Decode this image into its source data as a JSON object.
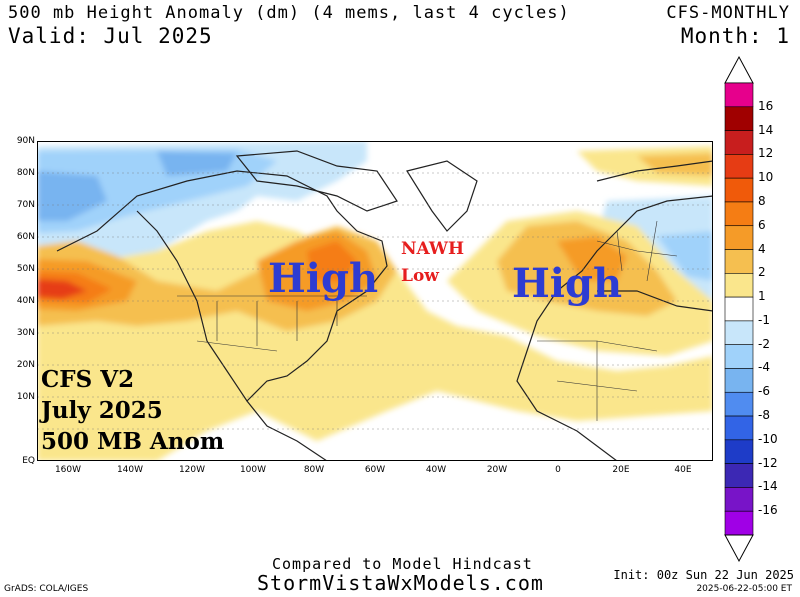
{
  "header": {
    "title": "500 mb Height Anomaly (dm) (4 mems, last 4 cycles)",
    "model": "CFS-MONTHLY",
    "valid": "Valid: Jul 2025",
    "month": "Month: 1"
  },
  "axes": {
    "lat_labels": [
      "90N",
      "80N",
      "70N",
      "60N",
      "50N",
      "40N",
      "30N",
      "20N",
      "10N",
      "EQ"
    ],
    "lon_labels": [
      "160W",
      "140W",
      "120W",
      "100W",
      "80W",
      "60W",
      "40W",
      "20W",
      "0",
      "20E",
      "40E"
    ]
  },
  "annotations": {
    "high_na": "High",
    "nawh_1": "NAWH",
    "nawh_2": "Low",
    "high_eu": "High",
    "cfs_1": "CFS V2",
    "cfs_2": "July 2025",
    "cfs_3": "500 MB Anom"
  },
  "colorbar": {
    "labels": [
      "16",
      "14",
      "12",
      "10",
      "8",
      "6",
      "4",
      "2",
      "1",
      "-1",
      "-2",
      "-4",
      "-6",
      "-8",
      "-10",
      "-12",
      "-14",
      "-16"
    ],
    "colors": [
      "#e6008c",
      "#a00000",
      "#c81e1e",
      "#e63c14",
      "#f05a0a",
      "#f57d14",
      "#f59b28",
      "#f5bf50",
      "#fae68c",
      "#ffffff",
      "#c8e6fa",
      "#a0d2fa",
      "#78b4f0",
      "#508cf0",
      "#3264e6",
      "#1e3cc8",
      "#3c28b4",
      "#7814c8",
      "#a000e6"
    ]
  },
  "footer": {
    "compared": "Compared to Model Hindcast",
    "site": "StormVistaWxModels.com",
    "grads": "GrADS: COLA/IGES",
    "init": "Init: 00z Sun 22 Jun 2025",
    "stamp": "2025-06-22-05:00 ET"
  }
}
